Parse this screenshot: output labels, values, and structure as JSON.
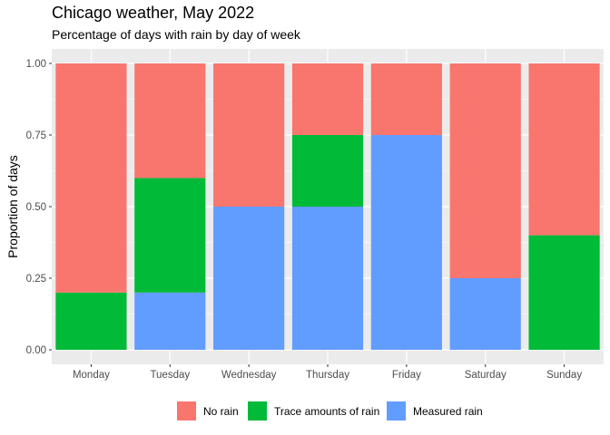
{
  "chart_data": {
    "type": "bar",
    "stacked": true,
    "title": "Chicago weather, May 2022",
    "subtitle": "Percentage of days with rain by day of week",
    "xlabel": "",
    "ylabel": "Proportion of days",
    "ylim": [
      0,
      1
    ],
    "y_ticks": [
      "0.00",
      "0.25",
      "0.50",
      "0.75",
      "1.00"
    ],
    "y_tick_values": [
      0,
      0.25,
      0.5,
      0.75,
      1.0
    ],
    "categories": [
      "Monday",
      "Tuesday",
      "Wednesday",
      "Thursday",
      "Friday",
      "Saturday",
      "Sunday"
    ],
    "series": [
      {
        "name": "Measured rain",
        "color": "#619CFF",
        "values": [
          0,
          0.2,
          0.5,
          0.5,
          0.75,
          0.25,
          0
        ]
      },
      {
        "name": "Trace amounts of rain",
        "color": "#00BA38",
        "values": [
          0.2,
          0.4,
          0,
          0.25,
          0,
          0,
          0.4
        ]
      },
      {
        "name": "No rain",
        "color": "#F8766D",
        "values": [
          0.8,
          0.4,
          0.5,
          0.25,
          0.25,
          0.75,
          0.6
        ]
      }
    ],
    "legend": {
      "position": "bottom",
      "order": [
        "No rain",
        "Trace amounts of rain",
        "Measured rain"
      ]
    },
    "grid": true,
    "panel_background": "#EBEBEB",
    "grid_color": "#FFFFFF"
  }
}
